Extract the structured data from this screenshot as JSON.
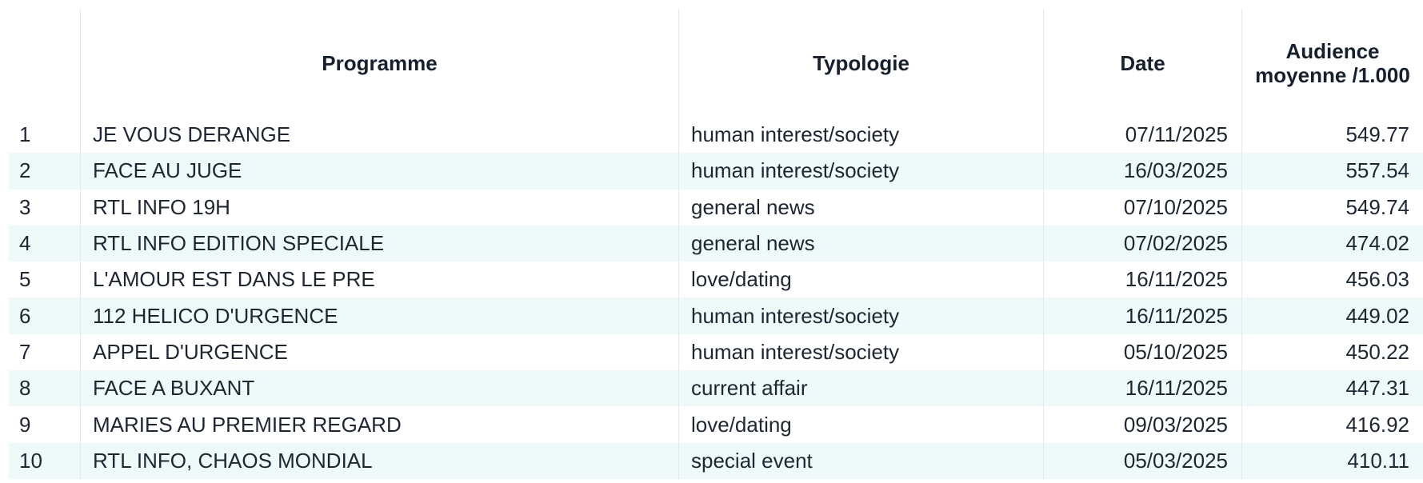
{
  "table": {
    "headers": {
      "index": "",
      "programme": "Programme",
      "typologie": "Typologie",
      "date": "Date",
      "audience": "Audience moyenne /1.000"
    },
    "stripe_color": "#eefaf9",
    "rows": [
      {
        "index": "1",
        "programme": "JE VOUS DERANGE",
        "typologie": "human interest/society",
        "date": "07/11/2025",
        "audience": "549.77"
      },
      {
        "index": "2",
        "programme": "FACE AU JUGE",
        "typologie": "human interest/society",
        "date": "16/03/2025",
        "audience": "557.54"
      },
      {
        "index": "3",
        "programme": "RTL INFO 19H",
        "typologie": "general news",
        "date": "07/10/2025",
        "audience": "549.74"
      },
      {
        "index": "4",
        "programme": "RTL INFO EDITION SPECIALE",
        "typologie": "general news",
        "date": "07/02/2025",
        "audience": "474.02"
      },
      {
        "index": "5",
        "programme": "L'AMOUR EST DANS LE PRE",
        "typologie": "love/dating",
        "date": "16/11/2025",
        "audience": "456.03"
      },
      {
        "index": "6",
        "programme": "112 HELICO D'URGENCE",
        "typologie": "human interest/society",
        "date": "16/11/2025",
        "audience": "449.02"
      },
      {
        "index": "7",
        "programme": "APPEL D'URGENCE",
        "typologie": "human interest/society",
        "date": "05/10/2025",
        "audience": "450.22"
      },
      {
        "index": "8",
        "programme": "FACE A BUXANT",
        "typologie": "current affair",
        "date": "16/11/2025",
        "audience": "447.31"
      },
      {
        "index": "9",
        "programme": "MARIES AU PREMIER REGARD",
        "typologie": "love/dating",
        "date": "09/03/2025",
        "audience": "416.92"
      },
      {
        "index": "10",
        "programme": "RTL INFO, CHAOS MONDIAL",
        "typologie": "special event",
        "date": "05/03/2025",
        "audience": "410.11"
      }
    ]
  }
}
